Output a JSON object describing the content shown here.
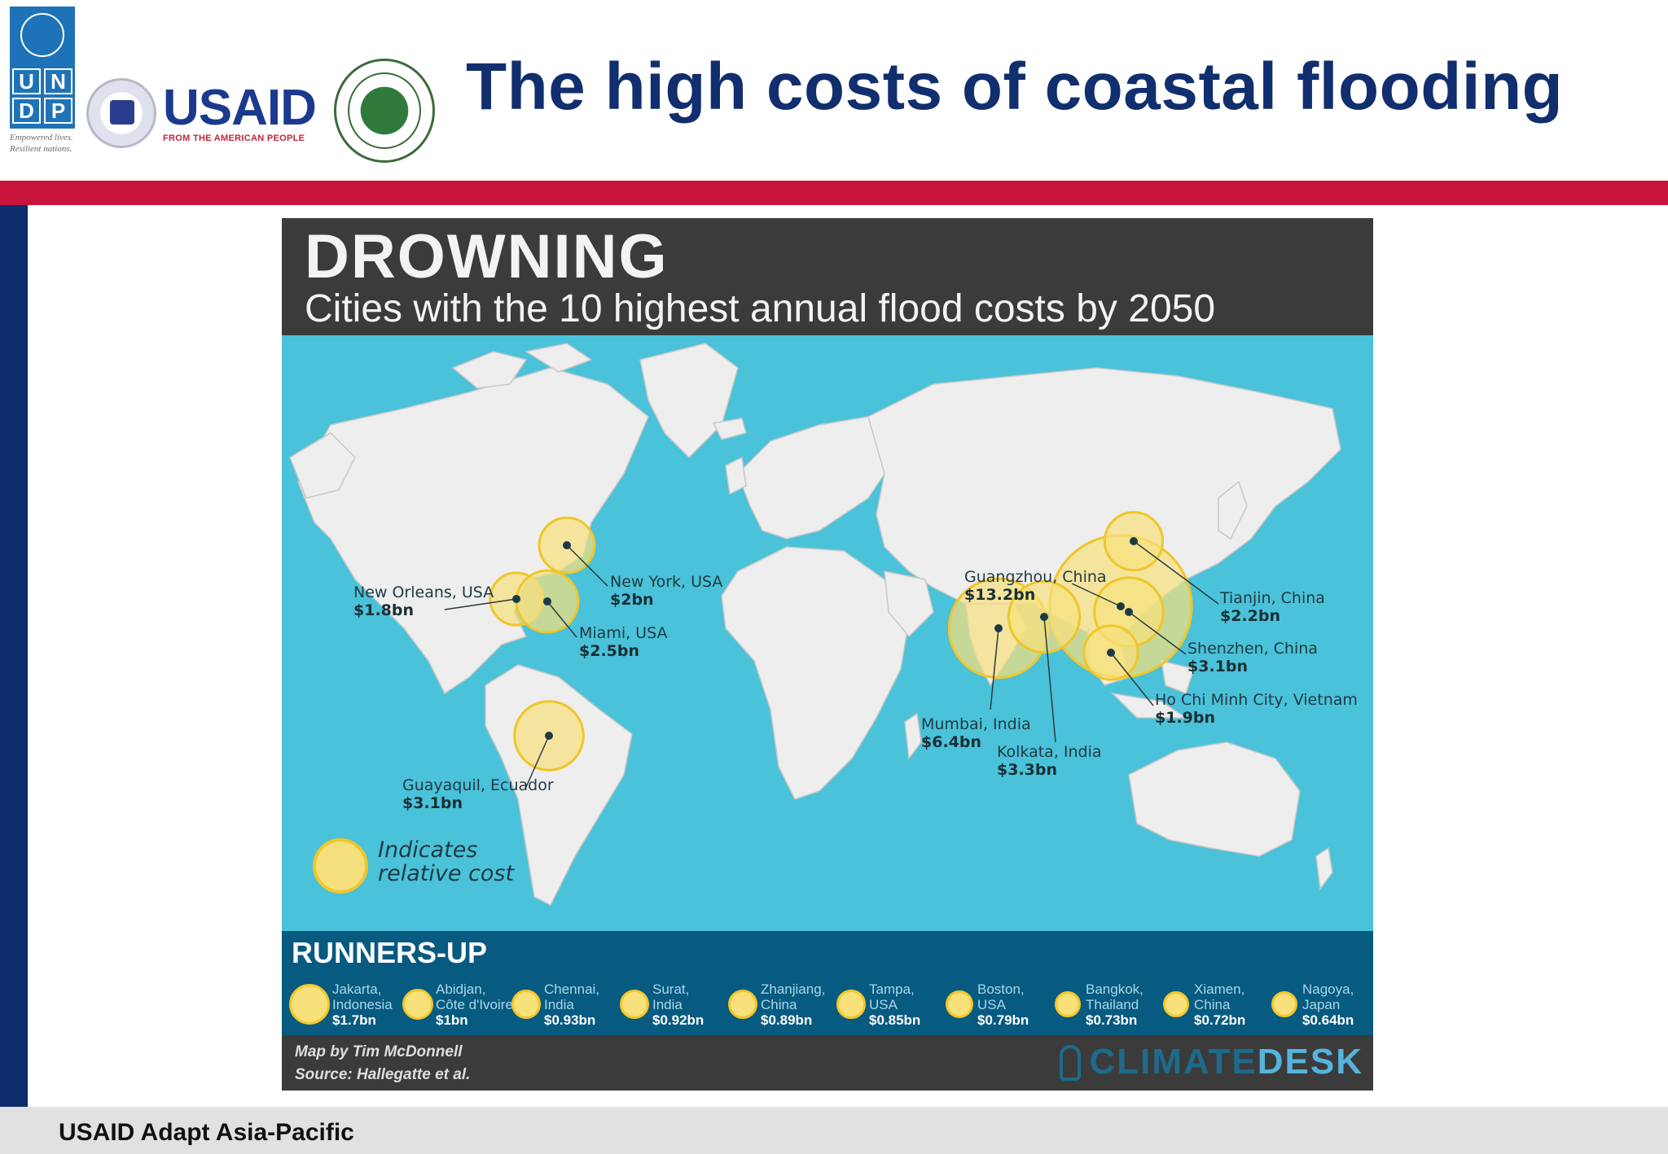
{
  "header": {
    "title": "The high costs of coastal flooding",
    "undp_letters": [
      "U",
      "N",
      "D",
      "P"
    ],
    "undp_tagline_1": "Empowered lives.",
    "undp_tagline_2": "Resilient nations.",
    "usaid_word": "USAID",
    "usaid_sub": "FROM THE AMERICAN PEOPLE"
  },
  "footer": {
    "text": "USAID Adapt Asia-Pacific"
  },
  "colors": {
    "ocean": "#4ac2d9",
    "land": "#eeeeee",
    "circle_fill": "#f6e07e",
    "circle_stroke": "#f0c62a",
    "runners_bg": "#075a80",
    "title_blue": "#112e6e",
    "rule_red": "#c8133b"
  },
  "infographic": {
    "title": "DROWNING",
    "subtitle": "Cities with the 10 highest annual flood costs by 2050",
    "legend_line_1": "Indicates",
    "legend_line_2": "relative cost",
    "top_cities": [
      {
        "name": "New Orleans, USA",
        "cost": "$1.8bn"
      },
      {
        "name": "New York, USA",
        "cost": "$2bn"
      },
      {
        "name": "Miami, USA",
        "cost": "$2.5bn"
      },
      {
        "name": "Guayaquil, Ecuador",
        "cost": "$3.1bn"
      },
      {
        "name": "Guangzhou, China",
        "cost": "$13.2bn"
      },
      {
        "name": "Tianjin, China",
        "cost": "$2.2bn"
      },
      {
        "name": "Shenzhen, China",
        "cost": "$3.1bn"
      },
      {
        "name": "Ho Chi Minh City, Vietnam",
        "cost": "$1.9bn"
      },
      {
        "name": "Mumbai, India",
        "cost": "$6.4bn"
      },
      {
        "name": "Kolkata, India",
        "cost": "$3.3bn"
      }
    ],
    "runners_up_title": "RUNNERS-UP",
    "runners_up": [
      {
        "city": "Jakarta,",
        "country": "Indonesia",
        "cost": "$1.7bn"
      },
      {
        "city": "Abidjan,",
        "country": "Côte d'Ivoire",
        "cost": "$1bn"
      },
      {
        "city": "Chennai,",
        "country": "India",
        "cost": "$0.93bn"
      },
      {
        "city": "Surat,",
        "country": "India",
        "cost": "$0.92bn"
      },
      {
        "city": "Zhanjiang,",
        "country": "China",
        "cost": "$0.89bn"
      },
      {
        "city": "Tampa,",
        "country": "USA",
        "cost": "$0.85bn"
      },
      {
        "city": "Boston,",
        "country": "USA",
        "cost": "$0.79bn"
      },
      {
        "city": "Bangkok,",
        "country": "Thailand",
        "cost": "$0.73bn"
      },
      {
        "city": "Xiamen,",
        "country": "China",
        "cost": "$0.72bn"
      },
      {
        "city": "Nagoya,",
        "country": "Japan",
        "cost": "$0.64bn"
      }
    ],
    "credit_map": "Map by Tim McDonnell",
    "credit_source": "Source: Hallegatte et al.",
    "brand_a": "CLIMATE",
    "brand_b": "DESK"
  }
}
